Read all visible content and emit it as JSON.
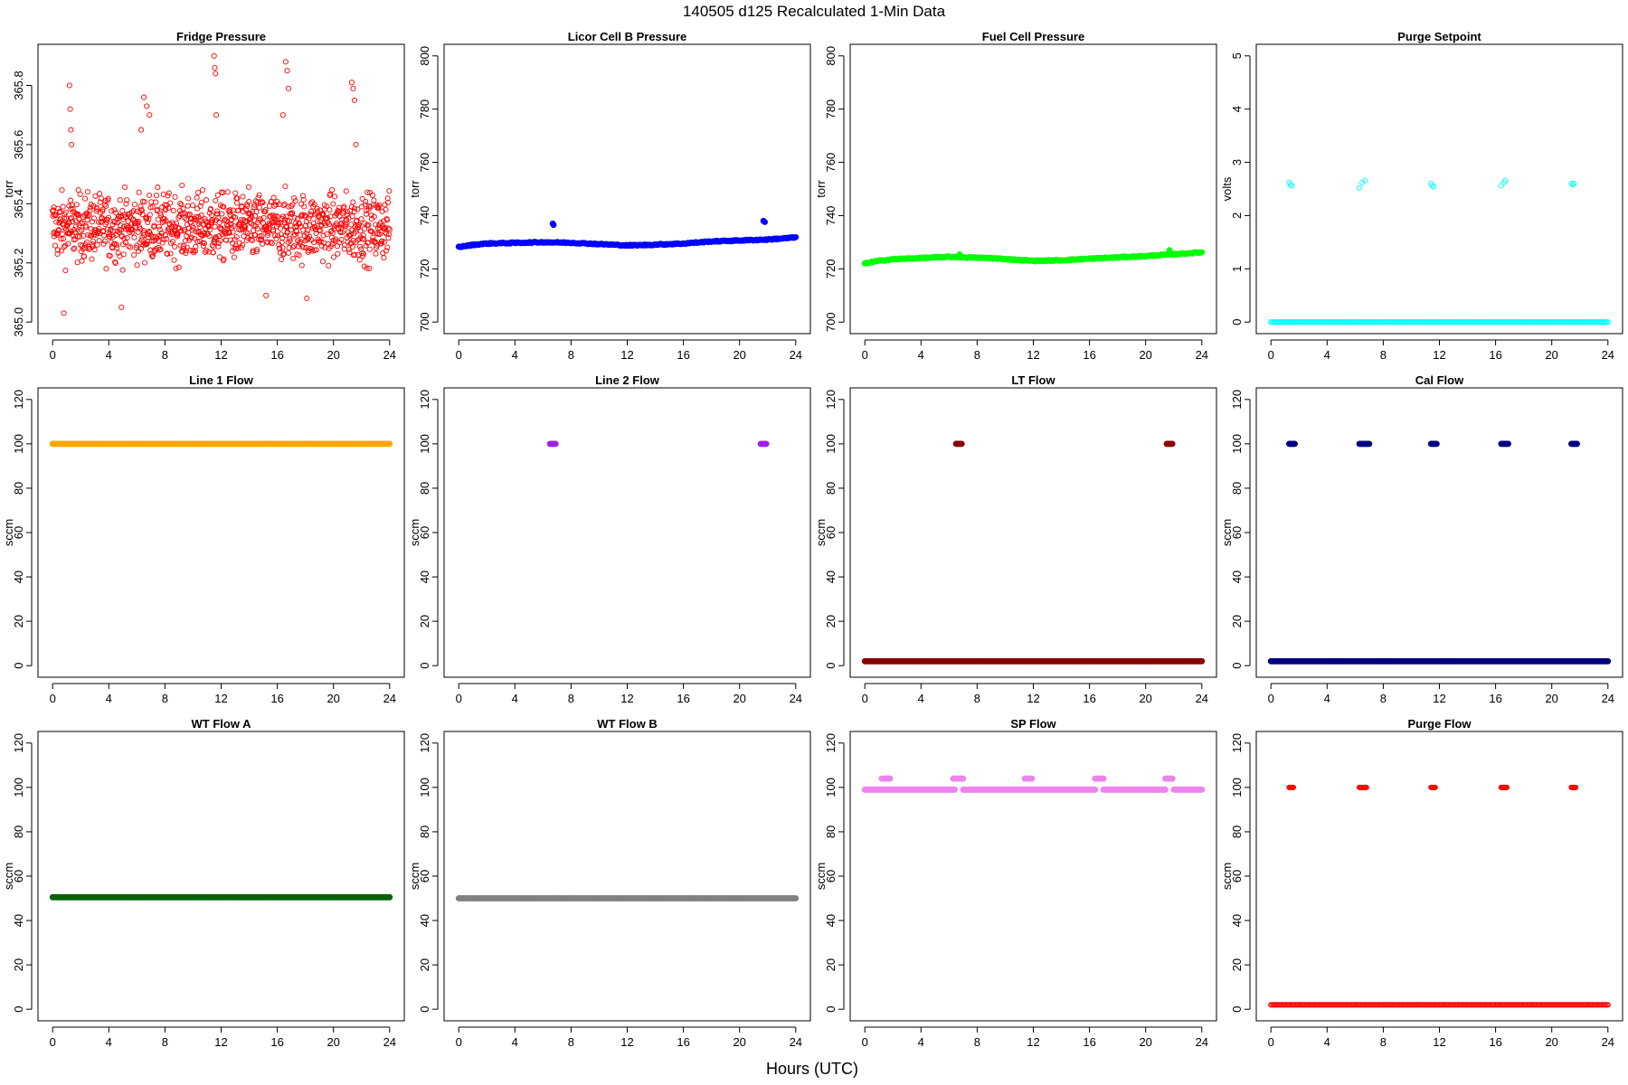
{
  "figure": {
    "title": "140505   d125   Recalculated 1-Min Data",
    "xlabel": "Hours (UTC)"
  },
  "chart_data": [
    {
      "type": "scatter",
      "title": "Fridge Pressure",
      "ylabel": "torr",
      "color": "#ff0000",
      "marker": "open",
      "xlim": [
        0,
        24
      ],
      "ylim": [
        365.0,
        365.9
      ],
      "xticks": [
        0,
        4,
        8,
        12,
        16,
        20,
        24
      ],
      "yticks": [
        365.0,
        365.2,
        365.4,
        365.6,
        365.8
      ],
      "ytick_labels": [
        "365.0",
        "365.2",
        "365.4",
        "365.6",
        "365.8"
      ],
      "series": [
        {
          "pattern": "noise",
          "x_range": [
            0,
            24
          ],
          "center": 365.32,
          "spread": 0.1,
          "spikes": [
            {
              "x": 1.2,
              "y": 365.8
            },
            {
              "x": 1.25,
              "y": 365.72
            },
            {
              "x": 1.3,
              "y": 365.65
            },
            {
              "x": 1.35,
              "y": 365.6
            },
            {
              "x": 6.3,
              "y": 365.65
            },
            {
              "x": 6.5,
              "y": 365.76
            },
            {
              "x": 6.7,
              "y": 365.73
            },
            {
              "x": 6.9,
              "y": 365.7
            },
            {
              "x": 11.5,
              "y": 365.9
            },
            {
              "x": 11.55,
              "y": 365.86
            },
            {
              "x": 11.6,
              "y": 365.84
            },
            {
              "x": 11.65,
              "y": 365.7
            },
            {
              "x": 16.4,
              "y": 365.7
            },
            {
              "x": 16.6,
              "y": 365.88
            },
            {
              "x": 16.7,
              "y": 365.85
            },
            {
              "x": 16.8,
              "y": 365.79
            },
            {
              "x": 21.3,
              "y": 365.81
            },
            {
              "x": 21.4,
              "y": 365.79
            },
            {
              "x": 21.5,
              "y": 365.75
            },
            {
              "x": 21.6,
              "y": 365.6
            },
            {
              "x": 0.8,
              "y": 365.03
            },
            {
              "x": 4.9,
              "y": 365.05
            },
            {
              "x": 15.2,
              "y": 365.09
            },
            {
              "x": 18.1,
              "y": 365.08
            }
          ]
        }
      ]
    },
    {
      "type": "scatter",
      "title": "Licor Cell B Pressure",
      "ylabel": "torr",
      "color": "#0000ff",
      "marker": "filled",
      "xlim": [
        0,
        24
      ],
      "ylim": [
        700,
        800
      ],
      "xticks": [
        0,
        4,
        8,
        12,
        16,
        20,
        24
      ],
      "yticks": [
        700,
        720,
        740,
        760,
        780,
        800
      ],
      "series": [
        {
          "pattern": "path",
          "x_range": [
            0,
            24
          ],
          "path": [
            [
              0,
              728.2
            ],
            [
              1,
              729
            ],
            [
              2,
              729.5
            ],
            [
              6,
              730
            ],
            [
              8,
              729.8
            ],
            [
              10,
              729.3
            ],
            [
              12,
              728.8
            ],
            [
              13,
              728.9
            ],
            [
              16,
              729.5
            ],
            [
              18,
              730.3
            ],
            [
              22,
              731
            ],
            [
              24,
              731.8
            ]
          ],
          "extra": [
            {
              "x": 6.7,
              "y": 737
            },
            {
              "x": 6.75,
              "y": 736.5
            },
            {
              "x": 21.7,
              "y": 738
            },
            {
              "x": 21.8,
              "y": 737.6
            }
          ]
        }
      ]
    },
    {
      "type": "scatter",
      "title": "Fuel Cell Pressure",
      "ylabel": "torr",
      "color": "#00ff00",
      "marker": "filled",
      "xlim": [
        0,
        24
      ],
      "ylim": [
        700,
        800
      ],
      "xticks": [
        0,
        4,
        8,
        12,
        16,
        20,
        24
      ],
      "yticks": [
        700,
        720,
        740,
        760,
        780,
        800
      ],
      "series": [
        {
          "pattern": "path",
          "x_range": [
            0,
            24
          ],
          "path": [
            [
              0,
              722
            ],
            [
              1,
              723
            ],
            [
              2,
              723.6
            ],
            [
              6,
              724.5
            ],
            [
              9,
              724
            ],
            [
              12,
              723
            ],
            [
              14,
              723.2
            ],
            [
              16,
              723.8
            ],
            [
              20,
              724.8
            ],
            [
              24,
              726.2
            ]
          ],
          "extra": [
            {
              "x": 6.75,
              "y": 725.4
            },
            {
              "x": 21.7,
              "y": 727
            }
          ]
        }
      ]
    },
    {
      "type": "scatter",
      "title": "Purge Setpoint",
      "ylabel": "volts",
      "color": "#00ffff",
      "marker": "open",
      "xlim": [
        0,
        24
      ],
      "ylim": [
        0,
        5
      ],
      "xticks": [
        0,
        4,
        8,
        12,
        16,
        20,
        24
      ],
      "yticks": [
        0,
        1,
        2,
        3,
        4,
        5
      ],
      "series": [
        {
          "pattern": "flat",
          "x_range": [
            0,
            24
          ],
          "y": 0,
          "extra": [
            {
              "x": 1.3,
              "y": 2.62
            },
            {
              "x": 1.4,
              "y": 2.58
            },
            {
              "x": 1.5,
              "y": 2.56
            },
            {
              "x": 6.3,
              "y": 2.52
            },
            {
              "x": 6.5,
              "y": 2.62
            },
            {
              "x": 6.7,
              "y": 2.66
            },
            {
              "x": 11.4,
              "y": 2.6
            },
            {
              "x": 11.5,
              "y": 2.56
            },
            {
              "x": 11.6,
              "y": 2.54
            },
            {
              "x": 16.4,
              "y": 2.56
            },
            {
              "x": 16.6,
              "y": 2.62
            },
            {
              "x": 16.7,
              "y": 2.66
            },
            {
              "x": 21.4,
              "y": 2.6
            },
            {
              "x": 21.5,
              "y": 2.58
            },
            {
              "x": 21.6,
              "y": 2.6
            }
          ]
        }
      ]
    },
    {
      "type": "scatter",
      "title": "Line 1 Flow",
      "ylabel": "sccm",
      "color": "#ffa500",
      "marker": "filled",
      "xlim": [
        0,
        24
      ],
      "ylim": [
        0,
        120
      ],
      "xticks": [
        0,
        4,
        8,
        12,
        16,
        20,
        24
      ],
      "yticks": [
        0,
        20,
        40,
        60,
        80,
        100,
        120
      ],
      "series": [
        {
          "pattern": "flat",
          "x_range": [
            0,
            24
          ],
          "y": 100
        }
      ]
    },
    {
      "type": "scatter",
      "title": "Line 2 Flow",
      "ylabel": "sccm",
      "color": "#a020f0",
      "marker": "filled",
      "xlim": [
        0,
        24
      ],
      "ylim": [
        0,
        120
      ],
      "xticks": [
        0,
        4,
        8,
        12,
        16,
        20,
        24
      ],
      "yticks": [
        0,
        20,
        40,
        60,
        80,
        100,
        120
      ],
      "series": [
        {
          "pattern": "segments",
          "y": 100,
          "segments": [
            [
              6.5,
              6.9
            ],
            [
              21.5,
              21.9
            ]
          ]
        }
      ]
    },
    {
      "type": "scatter",
      "title": "LT Flow",
      "ylabel": "sccm",
      "color": "#8b0000",
      "marker": "filled",
      "xlim": [
        0,
        24
      ],
      "ylim": [
        0,
        120
      ],
      "xticks": [
        0,
        4,
        8,
        12,
        16,
        20,
        24
      ],
      "yticks": [
        0,
        20,
        40,
        60,
        80,
        100,
        120
      ],
      "series": [
        {
          "pattern": "flat",
          "x_range": [
            0,
            24
          ],
          "y": 2
        },
        {
          "pattern": "segments",
          "y": 100,
          "segments": [
            [
              6.5,
              6.9
            ],
            [
              21.5,
              21.9
            ]
          ]
        }
      ]
    },
    {
      "type": "scatter",
      "title": "Cal Flow",
      "ylabel": "sccm",
      "color": "#000080",
      "marker": "filled",
      "xlim": [
        0,
        24
      ],
      "ylim": [
        0,
        120
      ],
      "xticks": [
        0,
        4,
        8,
        12,
        16,
        20,
        24
      ],
      "yticks": [
        0,
        20,
        40,
        60,
        80,
        100,
        120
      ],
      "series": [
        {
          "pattern": "flat",
          "x_range": [
            0,
            24
          ],
          "y": 2
        },
        {
          "pattern": "segments",
          "y": 100,
          "segments": [
            [
              1.3,
              1.7
            ],
            [
              6.3,
              7.0
            ],
            [
              11.4,
              11.8
            ],
            [
              16.4,
              16.9
            ],
            [
              21.4,
              21.8
            ]
          ]
        }
      ]
    },
    {
      "type": "scatter",
      "title": "WT Flow A",
      "ylabel": "sccm",
      "color": "#006400",
      "marker": "filled",
      "xlim": [
        0,
        24
      ],
      "ylim": [
        0,
        120
      ],
      "xticks": [
        0,
        4,
        8,
        12,
        16,
        20,
        24
      ],
      "yticks": [
        0,
        20,
        40,
        60,
        80,
        100,
        120
      ],
      "series": [
        {
          "pattern": "flat",
          "x_range": [
            0,
            24
          ],
          "y": 50.5
        }
      ]
    },
    {
      "type": "scatter",
      "title": "WT Flow B",
      "ylabel": "sccm",
      "color": "#808080",
      "marker": "filled",
      "xlim": [
        0,
        24
      ],
      "ylim": [
        0,
        120
      ],
      "xticks": [
        0,
        4,
        8,
        12,
        16,
        20,
        24
      ],
      "yticks": [
        0,
        20,
        40,
        60,
        80,
        100,
        120
      ],
      "series": [
        {
          "pattern": "flat",
          "x_range": [
            0,
            24
          ],
          "y": 50
        }
      ]
    },
    {
      "type": "scatter",
      "title": "SP Flow",
      "ylabel": "sccm",
      "color": "#ee82ee",
      "marker": "filled",
      "xlim": [
        0,
        24
      ],
      "ylim": [
        0,
        120
      ],
      "xticks": [
        0,
        4,
        8,
        12,
        16,
        20,
        24
      ],
      "yticks": [
        0,
        20,
        40,
        60,
        80,
        100,
        120
      ],
      "series": [
        {
          "pattern": "segments",
          "y": 99,
          "segments": [
            [
              0,
              6.4
            ],
            [
              7.0,
              16.4
            ],
            [
              17.0,
              21.4
            ],
            [
              22.0,
              24.0
            ]
          ]
        },
        {
          "pattern": "segments",
          "y": 104,
          "segments": [
            [
              1.2,
              1.8
            ],
            [
              6.3,
              7.0
            ],
            [
              11.4,
              11.9
            ],
            [
              16.4,
              17.0
            ],
            [
              21.4,
              21.9
            ]
          ]
        }
      ]
    },
    {
      "type": "scatter",
      "title": "Purge Flow",
      "ylabel": "sccm",
      "color": "#ff0000",
      "marker": "open",
      "xlim": [
        0,
        24
      ],
      "ylim": [
        0,
        120
      ],
      "xticks": [
        0,
        4,
        8,
        12,
        16,
        20,
        24
      ],
      "yticks": [
        0,
        20,
        40,
        60,
        80,
        100,
        120
      ],
      "series": [
        {
          "pattern": "flat",
          "x_range": [
            0,
            24
          ],
          "y": 2
        },
        {
          "pattern": "segments",
          "y": 100,
          "segments": [
            [
              1.3,
              1.6
            ],
            [
              6.3,
              6.8
            ],
            [
              11.4,
              11.7
            ],
            [
              16.4,
              16.8
            ],
            [
              21.4,
              21.7
            ]
          ]
        }
      ]
    }
  ]
}
